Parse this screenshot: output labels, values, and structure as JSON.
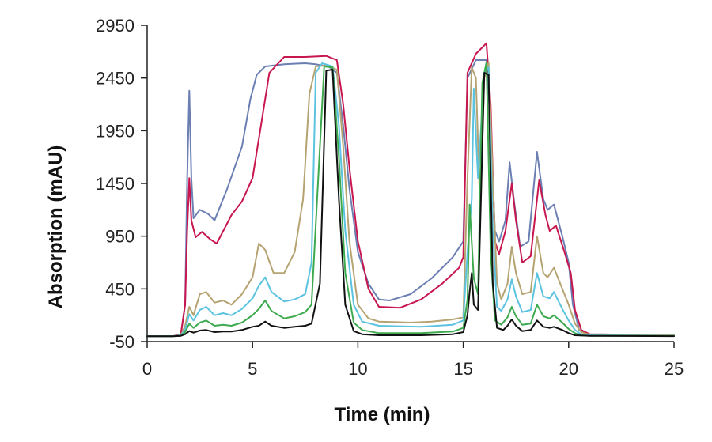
{
  "chart_data": {
    "type": "line",
    "title": "",
    "xlabel": "Time (min)",
    "ylabel": "Absorption (mAU)",
    "xlim": [
      0,
      25
    ],
    "ylim": [
      -50,
      2950
    ],
    "xticks": [
      0,
      5,
      10,
      15,
      20,
      25
    ],
    "yticks": [
      -50,
      450,
      950,
      1450,
      1950,
      2450,
      2950
    ],
    "grid": false,
    "legend": "none",
    "series": [
      {
        "color": "#6B7FB3",
        "points": [
          [
            0,
            0
          ],
          [
            1.2,
            0
          ],
          [
            1.6,
            20
          ],
          [
            1.8,
            300
          ],
          [
            1.9,
            1500
          ],
          [
            2.0,
            2330
          ],
          [
            2.1,
            1500
          ],
          [
            2.2,
            1120
          ],
          [
            2.5,
            1200
          ],
          [
            2.9,
            1160
          ],
          [
            3.2,
            1100
          ],
          [
            3.8,
            1400
          ],
          [
            4.5,
            1800
          ],
          [
            4.9,
            2250
          ],
          [
            5.2,
            2480
          ],
          [
            5.6,
            2560
          ],
          [
            6.5,
            2580
          ],
          [
            7.5,
            2590
          ],
          [
            8.0,
            2580
          ],
          [
            8.6,
            2560
          ],
          [
            9.0,
            2500
          ],
          [
            9.3,
            2000
          ],
          [
            9.6,
            1400
          ],
          [
            10.0,
            800
          ],
          [
            10.5,
            500
          ],
          [
            11.0,
            350
          ],
          [
            11.5,
            340
          ],
          [
            12.5,
            400
          ],
          [
            13.5,
            550
          ],
          [
            14.5,
            750
          ],
          [
            15.0,
            900
          ],
          [
            15.2,
            2450
          ],
          [
            15.6,
            2620
          ],
          [
            16.1,
            2620
          ],
          [
            16.3,
            2000
          ],
          [
            16.5,
            1000
          ],
          [
            16.7,
            900
          ],
          [
            17.0,
            1100
          ],
          [
            17.2,
            1650
          ],
          [
            17.4,
            1300
          ],
          [
            17.7,
            850
          ],
          [
            18.1,
            900
          ],
          [
            18.5,
            1750
          ],
          [
            18.8,
            1300
          ],
          [
            19.0,
            1200
          ],
          [
            19.3,
            1250
          ],
          [
            19.7,
            950
          ],
          [
            20.0,
            700
          ],
          [
            20.2,
            300
          ],
          [
            20.5,
            60
          ],
          [
            21,
            20
          ],
          [
            25,
            10
          ]
        ]
      },
      {
        "color": "#C8174F",
        "points": [
          [
            0,
            0
          ],
          [
            1.2,
            0
          ],
          [
            1.6,
            20
          ],
          [
            1.8,
            300
          ],
          [
            1.9,
            1000
          ],
          [
            2.0,
            1500
          ],
          [
            2.1,
            1100
          ],
          [
            2.3,
            940
          ],
          [
            2.6,
            990
          ],
          [
            3.0,
            920
          ],
          [
            3.3,
            880
          ],
          [
            4.0,
            1150
          ],
          [
            4.5,
            1280
          ],
          [
            5.0,
            1500
          ],
          [
            5.4,
            2000
          ],
          [
            5.8,
            2500
          ],
          [
            6.5,
            2650
          ],
          [
            7.5,
            2650
          ],
          [
            8.5,
            2660
          ],
          [
            9.0,
            2620
          ],
          [
            9.3,
            2200
          ],
          [
            9.6,
            1600
          ],
          [
            10.0,
            900
          ],
          [
            10.5,
            450
          ],
          [
            11.0,
            280
          ],
          [
            12.0,
            270
          ],
          [
            13.0,
            350
          ],
          [
            14.0,
            500
          ],
          [
            14.8,
            650
          ],
          [
            15.0,
            750
          ],
          [
            15.2,
            2500
          ],
          [
            15.6,
            2680
          ],
          [
            16.1,
            2780
          ],
          [
            16.3,
            2200
          ],
          [
            16.5,
            900
          ],
          [
            16.7,
            780
          ],
          [
            17.0,
            1000
          ],
          [
            17.3,
            1450
          ],
          [
            17.5,
            1100
          ],
          [
            17.8,
            700
          ],
          [
            18.2,
            760
          ],
          [
            18.6,
            1480
          ],
          [
            18.9,
            1150
          ],
          [
            19.1,
            1000
          ],
          [
            19.4,
            1050
          ],
          [
            19.8,
            800
          ],
          [
            20.1,
            600
          ],
          [
            20.3,
            250
          ],
          [
            20.6,
            60
          ],
          [
            21,
            20
          ],
          [
            25,
            10
          ]
        ]
      },
      {
        "color": "#B5A371",
        "points": [
          [
            0,
            0
          ],
          [
            1.2,
            0
          ],
          [
            1.6,
            10
          ],
          [
            1.8,
            100
          ],
          [
            2.0,
            280
          ],
          [
            2.2,
            200
          ],
          [
            2.5,
            400
          ],
          [
            2.8,
            420
          ],
          [
            3.2,
            320
          ],
          [
            3.6,
            340
          ],
          [
            4.0,
            300
          ],
          [
            4.5,
            400
          ],
          [
            5.0,
            560
          ],
          [
            5.3,
            880
          ],
          [
            5.6,
            820
          ],
          [
            6.0,
            600
          ],
          [
            6.5,
            600
          ],
          [
            7.0,
            800
          ],
          [
            7.4,
            1300
          ],
          [
            7.7,
            2300
          ],
          [
            8.0,
            2560
          ],
          [
            8.5,
            2570
          ],
          [
            9.0,
            2530
          ],
          [
            9.3,
            1800
          ],
          [
            9.6,
            900
          ],
          [
            10.0,
            300
          ],
          [
            10.5,
            170
          ],
          [
            11.0,
            140
          ],
          [
            12.5,
            130
          ],
          [
            13.5,
            140
          ],
          [
            14.5,
            160
          ],
          [
            15.0,
            180
          ],
          [
            15.2,
            1500
          ],
          [
            15.4,
            2550
          ],
          [
            15.6,
            2450
          ],
          [
            15.8,
            1200
          ],
          [
            16.0,
            2450
          ],
          [
            16.2,
            2600
          ],
          [
            16.4,
            1500
          ],
          [
            16.6,
            500
          ],
          [
            16.8,
            350
          ],
          [
            17.1,
            500
          ],
          [
            17.3,
            850
          ],
          [
            17.5,
            600
          ],
          [
            17.8,
            400
          ],
          [
            18.2,
            420
          ],
          [
            18.5,
            950
          ],
          [
            18.8,
            600
          ],
          [
            19.0,
            560
          ],
          [
            19.3,
            650
          ],
          [
            19.7,
            450
          ],
          [
            20.0,
            300
          ],
          [
            20.3,
            120
          ],
          [
            20.6,
            40
          ],
          [
            21,
            15
          ],
          [
            25,
            10
          ]
        ]
      },
      {
        "color": "#5BC3E0",
        "points": [
          [
            0,
            0
          ],
          [
            1.2,
            0
          ],
          [
            1.6,
            10
          ],
          [
            1.8,
            60
          ],
          [
            2.0,
            210
          ],
          [
            2.2,
            150
          ],
          [
            2.5,
            250
          ],
          [
            2.8,
            280
          ],
          [
            3.2,
            200
          ],
          [
            3.6,
            220
          ],
          [
            4.0,
            200
          ],
          [
            4.5,
            260
          ],
          [
            5.0,
            360
          ],
          [
            5.3,
            480
          ],
          [
            5.6,
            560
          ],
          [
            5.9,
            420
          ],
          [
            6.5,
            330
          ],
          [
            7.0,
            350
          ],
          [
            7.5,
            400
          ],
          [
            7.8,
            700
          ],
          [
            8.0,
            2500
          ],
          [
            8.3,
            2590
          ],
          [
            8.8,
            2560
          ],
          [
            9.1,
            2000
          ],
          [
            9.4,
            1000
          ],
          [
            9.8,
            300
          ],
          [
            10.2,
            140
          ],
          [
            11,
            100
          ],
          [
            13,
            90
          ],
          [
            14.5,
            110
          ],
          [
            15.0,
            150
          ],
          [
            15.2,
            800
          ],
          [
            15.4,
            1300
          ],
          [
            15.5,
            2350
          ],
          [
            15.7,
            1500
          ],
          [
            16.0,
            2500
          ],
          [
            16.2,
            2550
          ],
          [
            16.4,
            1000
          ],
          [
            16.6,
            280
          ],
          [
            16.8,
            240
          ],
          [
            17.1,
            350
          ],
          [
            17.3,
            540
          ],
          [
            17.5,
            380
          ],
          [
            17.8,
            230
          ],
          [
            18.2,
            250
          ],
          [
            18.5,
            600
          ],
          [
            18.8,
            380
          ],
          [
            19.1,
            360
          ],
          [
            19.3,
            420
          ],
          [
            19.7,
            260
          ],
          [
            20.0,
            150
          ],
          [
            20.3,
            60
          ],
          [
            20.6,
            20
          ],
          [
            21,
            10
          ],
          [
            25,
            5
          ]
        ]
      },
      {
        "color": "#3EAA4F",
        "points": [
          [
            0,
            0
          ],
          [
            1.2,
            0
          ],
          [
            1.6,
            5
          ],
          [
            1.8,
            40
          ],
          [
            2.0,
            120
          ],
          [
            2.2,
            80
          ],
          [
            2.5,
            130
          ],
          [
            2.8,
            150
          ],
          [
            3.2,
            100
          ],
          [
            3.6,
            110
          ],
          [
            4.0,
            100
          ],
          [
            4.5,
            130
          ],
          [
            5.0,
            200
          ],
          [
            5.3,
            260
          ],
          [
            5.6,
            340
          ],
          [
            5.9,
            240
          ],
          [
            6.5,
            170
          ],
          [
            7.0,
            190
          ],
          [
            7.5,
            230
          ],
          [
            7.8,
            300
          ],
          [
            8.2,
            1800
          ],
          [
            8.4,
            2560
          ],
          [
            8.8,
            2550
          ],
          [
            9.1,
            1700
          ],
          [
            9.4,
            600
          ],
          [
            9.8,
            130
          ],
          [
            10.2,
            60
          ],
          [
            11,
            30
          ],
          [
            13,
            30
          ],
          [
            14.5,
            45
          ],
          [
            15.0,
            80
          ],
          [
            15.2,
            350
          ],
          [
            15.3,
            1250
          ],
          [
            15.5,
            550
          ],
          [
            15.7,
            400
          ],
          [
            15.9,
            2400
          ],
          [
            16.1,
            2600
          ],
          [
            16.3,
            800
          ],
          [
            16.5,
            150
          ],
          [
            16.8,
            110
          ],
          [
            17.1,
            180
          ],
          [
            17.3,
            280
          ],
          [
            17.5,
            190
          ],
          [
            17.8,
            110
          ],
          [
            18.2,
            120
          ],
          [
            18.5,
            300
          ],
          [
            18.8,
            190
          ],
          [
            19.1,
            170
          ],
          [
            19.3,
            200
          ],
          [
            19.7,
            130
          ],
          [
            20.0,
            70
          ],
          [
            20.3,
            30
          ],
          [
            20.6,
            10
          ],
          [
            21,
            5
          ],
          [
            25,
            3
          ]
        ]
      },
      {
        "color": "#111111",
        "points": [
          [
            0,
            0
          ],
          [
            1.2,
            0
          ],
          [
            1.6,
            5
          ],
          [
            1.8,
            20
          ],
          [
            2.0,
            50
          ],
          [
            2.2,
            35
          ],
          [
            2.5,
            55
          ],
          [
            2.8,
            60
          ],
          [
            3.2,
            40
          ],
          [
            3.6,
            45
          ],
          [
            4.0,
            45
          ],
          [
            4.5,
            60
          ],
          [
            5.0,
            90
          ],
          [
            5.3,
            100
          ],
          [
            5.6,
            140
          ],
          [
            5.9,
            100
          ],
          [
            6.5,
            80
          ],
          [
            7.0,
            90
          ],
          [
            7.5,
            100
          ],
          [
            7.8,
            120
          ],
          [
            8.2,
            500
          ],
          [
            8.5,
            2520
          ],
          [
            8.8,
            2530
          ],
          [
            9.1,
            1300
          ],
          [
            9.4,
            300
          ],
          [
            9.8,
            50
          ],
          [
            10.2,
            20
          ],
          [
            11,
            10
          ],
          [
            13,
            10
          ],
          [
            14.5,
            20
          ],
          [
            15.0,
            40
          ],
          [
            15.2,
            200
          ],
          [
            15.3,
            420
          ],
          [
            15.4,
            600
          ],
          [
            15.5,
            300
          ],
          [
            15.7,
            250
          ],
          [
            16.0,
            2500
          ],
          [
            16.2,
            2480
          ],
          [
            16.4,
            500
          ],
          [
            16.6,
            80
          ],
          [
            16.9,
            60
          ],
          [
            17.1,
            100
          ],
          [
            17.3,
            160
          ],
          [
            17.5,
            100
          ],
          [
            17.8,
            50
          ],
          [
            18.2,
            60
          ],
          [
            18.5,
            150
          ],
          [
            18.8,
            90
          ],
          [
            19.1,
            80
          ],
          [
            19.3,
            90
          ],
          [
            19.7,
            60
          ],
          [
            20.0,
            30
          ],
          [
            20.3,
            10
          ],
          [
            21,
            5
          ],
          [
            25,
            2
          ]
        ]
      }
    ]
  }
}
